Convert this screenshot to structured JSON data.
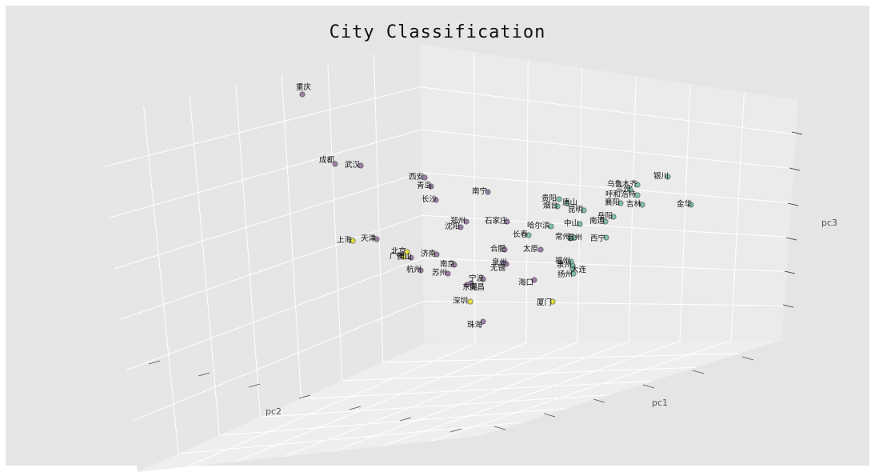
{
  "chart_data": {
    "type": "scatter",
    "title": "City Classification",
    "xlabel": "pc1",
    "ylabel": "pc2",
    "zlabel": "pc3",
    "projection": "3d",
    "grid": true,
    "colors": {
      "cluster_0": "#9b7fa6",
      "cluster_1": "#e5e040",
      "cluster_2": "#7fbfaf",
      "background": "#e5e5e5",
      "pane_left": "#e6e6e6",
      "pane_right": "#ebebeb",
      "pane_floor": "#f0f0f0"
    },
    "points": [
      {
        "label": "重庆",
        "cluster": 0
      },
      {
        "label": "成都",
        "cluster": 0
      },
      {
        "label": "武汉",
        "cluster": 0
      },
      {
        "label": "西安",
        "cluster": 0
      },
      {
        "label": "青岛",
        "cluster": 0
      },
      {
        "label": "南宁",
        "cluster": 0
      },
      {
        "label": "长沙",
        "cluster": 0
      },
      {
        "label": "郑州",
        "cluster": 0
      },
      {
        "label": "沈阳",
        "cluster": 0
      },
      {
        "label": "石家庄",
        "cluster": 0
      },
      {
        "label": "上海",
        "cluster": 1
      },
      {
        "label": "天津",
        "cluster": 0
      },
      {
        "label": "北京",
        "cluster": 1
      },
      {
        "label": "广州",
        "cluster": 1
      },
      {
        "label": "佛山",
        "cluster": 0
      },
      {
        "label": "济南",
        "cluster": 0
      },
      {
        "label": "南京",
        "cluster": 0
      },
      {
        "label": "杭州",
        "cluster": 0
      },
      {
        "label": "苏州",
        "cluster": 0
      },
      {
        "label": "宁波",
        "cluster": 0
      },
      {
        "label": "东莞",
        "cluster": 0
      },
      {
        "label": "南昌",
        "cluster": 0
      },
      {
        "label": "泉州",
        "cluster": 0
      },
      {
        "label": "合肥",
        "cluster": 0
      },
      {
        "label": "无锡",
        "cluster": 0
      },
      {
        "label": "太原",
        "cluster": 0
      },
      {
        "label": "海口",
        "cluster": 0
      },
      {
        "label": "深圳",
        "cluster": 1
      },
      {
        "label": "珠海",
        "cluster": 0
      },
      {
        "label": "厦门",
        "cluster": 1
      },
      {
        "label": "哈尔滨",
        "cluster": 2
      },
      {
        "label": "长春",
        "cluster": 2
      },
      {
        "label": "贵阳",
        "cluster": 2
      },
      {
        "label": "烟台",
        "cluster": 2
      },
      {
        "label": "唐山",
        "cluster": 2
      },
      {
        "label": "昆明",
        "cluster": 2
      },
      {
        "label": "中山",
        "cluster": 2
      },
      {
        "label": "常州",
        "cluster": 2
      },
      {
        "label": "温州",
        "cluster": 2
      },
      {
        "label": "泉州",
        "cluster": 2
      },
      {
        "label": "福州",
        "cluster": 2
      },
      {
        "label": "大连",
        "cluster": 2
      },
      {
        "label": "扬州",
        "cluster": 2
      },
      {
        "label": "乌鲁木齐",
        "cluster": 2
      },
      {
        "label": "兰州",
        "cluster": 2
      },
      {
        "label": "呼和浩特",
        "cluster": 2
      },
      {
        "label": "襄阳",
        "cluster": 2
      },
      {
        "label": "吉林",
        "cluster": 2
      },
      {
        "label": "银川",
        "cluster": 2
      },
      {
        "label": "金华",
        "cluster": 2
      },
      {
        "label": "南通",
        "cluster": 2
      },
      {
        "label": "岳阳",
        "cluster": 2
      },
      {
        "label": "西宁",
        "cluster": 2
      }
    ]
  }
}
